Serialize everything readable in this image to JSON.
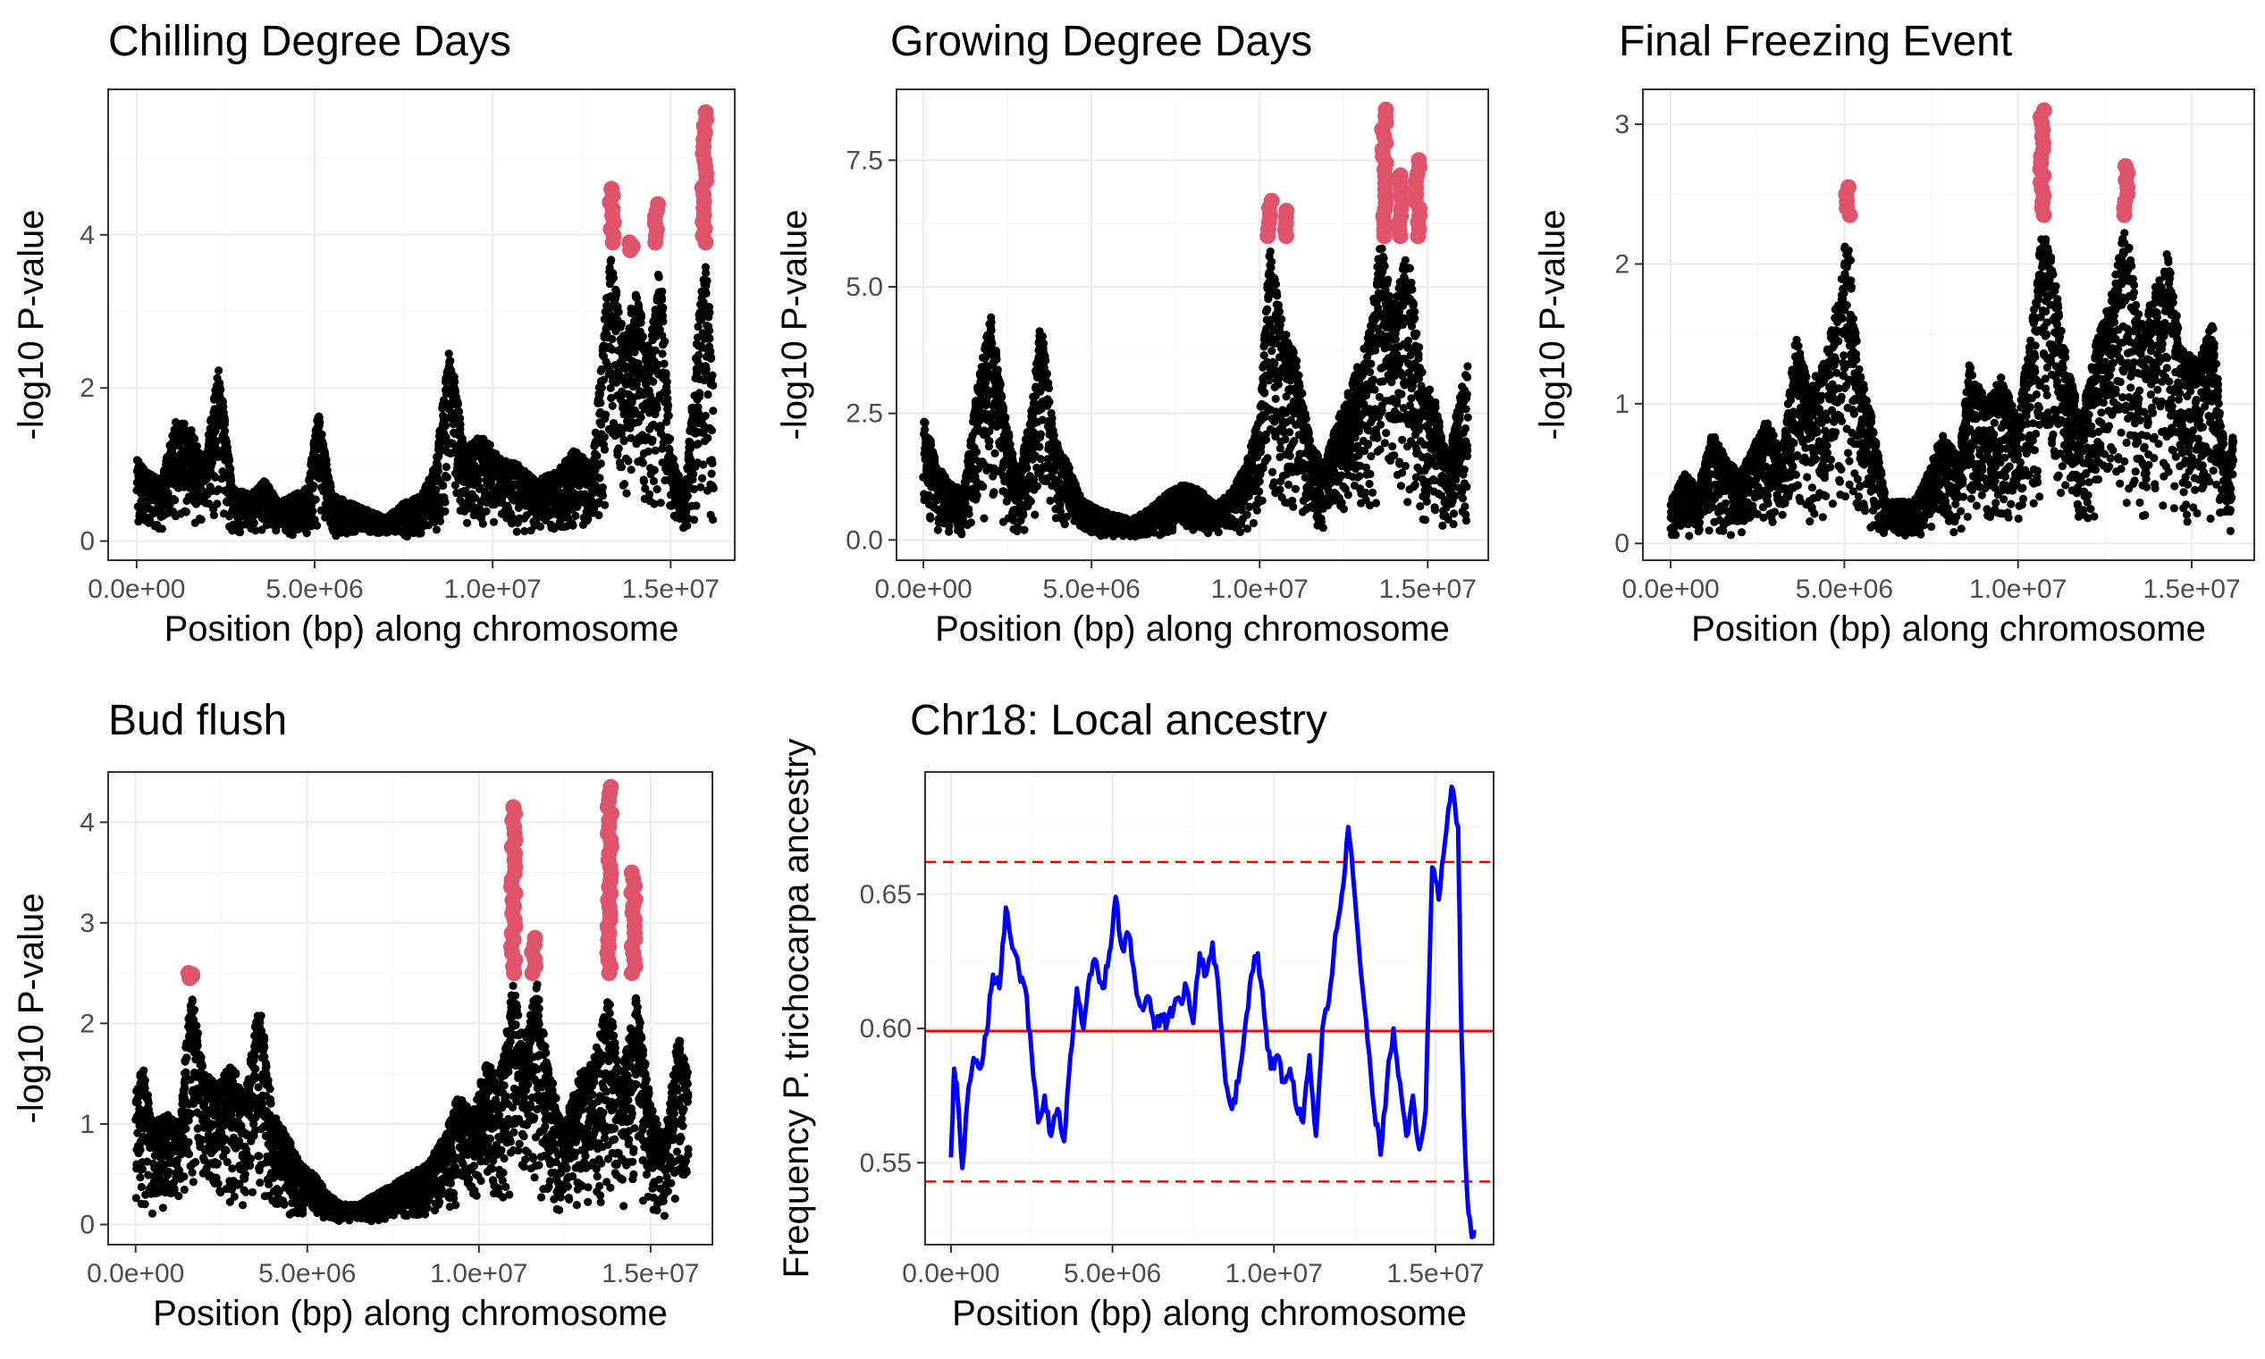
{
  "chart_data": [
    {
      "id": "cdd",
      "type": "scatter",
      "title": "Chilling Degree Days",
      "xlabel": "Position (bp) along chromosome",
      "ylabel": "-log10 P-value",
      "xlim": [
        -800000,
        16800000
      ],
      "ylim": [
        -0.25,
        5.9
      ],
      "xticks": [
        0,
        5000000,
        10000000,
        15000000
      ],
      "xtick_labels": [
        "0.0e+00",
        "5.0e+06",
        "1.0e+07",
        "1.5e+07"
      ],
      "yticks": [
        0,
        2,
        4
      ],
      "ytick_labels": [
        "0",
        "2",
        "4"
      ],
      "grid": true,
      "series_colors": {
        "points": "#000000",
        "significant": "#df536b"
      },
      "points_profile": [
        [
          0,
          1.1
        ],
        [
          300000,
          0.9
        ],
        [
          700000,
          0.8
        ],
        [
          1100000,
          1.6
        ],
        [
          1500000,
          1.5
        ],
        [
          1900000,
          1.0
        ],
        [
          2300000,
          2.3
        ],
        [
          2700000,
          0.7
        ],
        [
          3200000,
          0.6
        ],
        [
          3600000,
          0.8
        ],
        [
          4000000,
          0.5
        ],
        [
          4400000,
          0.6
        ],
        [
          4800000,
          0.7
        ],
        [
          5100000,
          1.7
        ],
        [
          5500000,
          0.6
        ],
        [
          6000000,
          0.5
        ],
        [
          6500000,
          0.4
        ],
        [
          7000000,
          0.3
        ],
        [
          7500000,
          0.5
        ],
        [
          8000000,
          0.6
        ],
        [
          8400000,
          1.0
        ],
        [
          8800000,
          2.6
        ],
        [
          9200000,
          1.2
        ],
        [
          9700000,
          1.4
        ],
        [
          10200000,
          1.1
        ],
        [
          10700000,
          1.0
        ],
        [
          11200000,
          0.8
        ],
        [
          11800000,
          0.9
        ],
        [
          12300000,
          1.2
        ],
        [
          12800000,
          1.0
        ],
        [
          13300000,
          3.8
        ],
        [
          13700000,
          2.6
        ],
        [
          14000000,
          3.3
        ],
        [
          14400000,
          2.5
        ],
        [
          14700000,
          3.8
        ],
        [
          15000000,
          1.2
        ],
        [
          15400000,
          0.6
        ],
        [
          15800000,
          3.0
        ],
        [
          16000000,
          3.9
        ],
        [
          16200000,
          2.2
        ]
      ],
      "significant_clusters": [
        {
          "x": 13350000,
          "y_min": 3.9,
          "y_max": 4.6
        },
        {
          "x": 13900000,
          "y_min": 3.8,
          "y_max": 3.9
        },
        {
          "x": 14600000,
          "y_min": 3.9,
          "y_max": 4.4
        },
        {
          "x": 15950000,
          "y_min": 3.9,
          "y_max": 5.6
        }
      ]
    },
    {
      "id": "gdd",
      "type": "scatter",
      "title": "Growing Degree Days",
      "xlabel": "Position (bp) along chromosome",
      "ylabel": "-log10 P-value",
      "xlim": [
        -800000,
        16800000
      ],
      "ylim": [
        -0.4,
        8.9
      ],
      "xticks": [
        0,
        5000000,
        10000000,
        15000000
      ],
      "xtick_labels": [
        "0.0e+00",
        "5.0e+06",
        "1.0e+07",
        "1.5e+07"
      ],
      "yticks": [
        0,
        2.5,
        5,
        7.5
      ],
      "ytick_labels": [
        "0.0",
        "2.5",
        "5.0",
        "7.5"
      ],
      "grid": true,
      "series_colors": {
        "points": "#000000",
        "significant": "#df536b"
      },
      "points_profile": [
        [
          0,
          2.5
        ],
        [
          400000,
          1.5
        ],
        [
          800000,
          1.1
        ],
        [
          1200000,
          1.0
        ],
        [
          1600000,
          3.0
        ],
        [
          2000000,
          4.5
        ],
        [
          2400000,
          2.6
        ],
        [
          2800000,
          1.2
        ],
        [
          3200000,
          2.5
        ],
        [
          3500000,
          4.4
        ],
        [
          3900000,
          2.0
        ],
        [
          4300000,
          1.5
        ],
        [
          4700000,
          0.8
        ],
        [
          5200000,
          0.6
        ],
        [
          5700000,
          0.5
        ],
        [
          6200000,
          0.4
        ],
        [
          6700000,
          0.6
        ],
        [
          7200000,
          0.9
        ],
        [
          7700000,
          1.1
        ],
        [
          8200000,
          1.0
        ],
        [
          8700000,
          0.7
        ],
        [
          9200000,
          1.0
        ],
        [
          9600000,
          1.5
        ],
        [
          10000000,
          2.5
        ],
        [
          10300000,
          5.8
        ],
        [
          10700000,
          4.2
        ],
        [
          11100000,
          3.6
        ],
        [
          11500000,
          2.0
        ],
        [
          11900000,
          1.5
        ],
        [
          12400000,
          2.5
        ],
        [
          12800000,
          3.2
        ],
        [
          13200000,
          4.0
        ],
        [
          13600000,
          5.9
        ],
        [
          14000000,
          4.6
        ],
        [
          14400000,
          5.8
        ],
        [
          14800000,
          3.5
        ],
        [
          15200000,
          2.8
        ],
        [
          15600000,
          1.6
        ],
        [
          16000000,
          3.0
        ],
        [
          16200000,
          3.5
        ]
      ],
      "significant_clusters": [
        {
          "x": 10300000,
          "y_min": 6.0,
          "y_max": 6.7
        },
        {
          "x": 10800000,
          "y_min": 6.0,
          "y_max": 6.5
        },
        {
          "x": 13700000,
          "y_min": 6.0,
          "y_max": 8.5
        },
        {
          "x": 14200000,
          "y_min": 6.0,
          "y_max": 7.2
        },
        {
          "x": 14700000,
          "y_min": 6.0,
          "y_max": 7.5
        }
      ]
    },
    {
      "id": "ffe",
      "type": "scatter",
      "title": "Final Freezing Event",
      "xlabel": "Position (bp) along chromosome",
      "ylabel": "-log10 P-value",
      "xlim": [
        -800000,
        16800000
      ],
      "ylim": [
        -0.12,
        3.25
      ],
      "xticks": [
        0,
        5000000,
        10000000,
        15000000
      ],
      "xtick_labels": [
        "0.0e+00",
        "5.0e+06",
        "1.0e+07",
        "1.5e+07"
      ],
      "yticks": [
        0,
        1,
        2,
        3
      ],
      "ytick_labels": [
        "0",
        "1",
        "2",
        "3"
      ],
      "grid": true,
      "series_colors": {
        "points": "#000000",
        "significant": "#df536b"
      },
      "points_profile": [
        [
          0,
          0.3
        ],
        [
          400000,
          0.5
        ],
        [
          800000,
          0.4
        ],
        [
          1200000,
          0.8
        ],
        [
          1600000,
          0.6
        ],
        [
          2000000,
          0.5
        ],
        [
          2400000,
          0.7
        ],
        [
          2800000,
          0.9
        ],
        [
          3200000,
          0.6
        ],
        [
          3600000,
          1.5
        ],
        [
          4000000,
          1.1
        ],
        [
          4500000,
          1.4
        ],
        [
          4900000,
          1.9
        ],
        [
          5100000,
          2.3
        ],
        [
          5400000,
          1.3
        ],
        [
          5800000,
          0.9
        ],
        [
          6200000,
          0.3
        ],
        [
          6600000,
          0.3
        ],
        [
          7000000,
          0.3
        ],
        [
          7400000,
          0.5
        ],
        [
          7800000,
          0.8
        ],
        [
          8300000,
          0.6
        ],
        [
          8600000,
          1.3
        ],
        [
          9100000,
          1.0
        ],
        [
          9500000,
          1.2
        ],
        [
          10000000,
          0.9
        ],
        [
          10500000,
          1.8
        ],
        [
          10700000,
          2.3
        ],
        [
          11000000,
          2.0
        ],
        [
          11400000,
          1.3
        ],
        [
          11800000,
          0.9
        ],
        [
          12200000,
          1.4
        ],
        [
          12700000,
          1.8
        ],
        [
          13100000,
          2.3
        ],
        [
          13500000,
          1.6
        ],
        [
          13900000,
          1.8
        ],
        [
          14300000,
          2.1
        ],
        [
          14700000,
          1.4
        ],
        [
          15200000,
          1.3
        ],
        [
          15600000,
          1.6
        ],
        [
          16000000,
          0.5
        ],
        [
          16200000,
          0.8
        ]
      ],
      "significant_clusters": [
        {
          "x": 5100000,
          "y_min": 2.35,
          "y_max": 2.55
        },
        {
          "x": 10700000,
          "y_min": 2.35,
          "y_max": 3.1
        },
        {
          "x": 13100000,
          "y_min": 2.35,
          "y_max": 2.7
        }
      ]
    },
    {
      "id": "bud",
      "type": "scatter",
      "title": "Bud flush",
      "xlabel": "Position (bp) along chromosome",
      "ylabel": "-log10 P-value",
      "xlim": [
        -800000,
        16800000
      ],
      "ylim": [
        -0.2,
        4.5
      ],
      "xticks": [
        0,
        5000000,
        10000000,
        15000000
      ],
      "xtick_labels": [
        "0.0e+00",
        "5.0e+06",
        "1.0e+07",
        "1.5e+07"
      ],
      "yticks": [
        0,
        1,
        2,
        3,
        4
      ],
      "ytick_labels": [
        "0",
        "1",
        "2",
        "3",
        "4"
      ],
      "grid": true,
      "series_colors": {
        "points": "#000000",
        "significant": "#df536b"
      },
      "points_profile": [
        [
          0,
          1.3
        ],
        [
          200000,
          1.6
        ],
        [
          500000,
          1.0
        ],
        [
          900000,
          1.1
        ],
        [
          1300000,
          1.0
        ],
        [
          1600000,
          2.4
        ],
        [
          2000000,
          1.5
        ],
        [
          2400000,
          1.4
        ],
        [
          2800000,
          1.6
        ],
        [
          3200000,
          1.3
        ],
        [
          3600000,
          2.3
        ],
        [
          4000000,
          1.1
        ],
        [
          4400000,
          0.9
        ],
        [
          4800000,
          0.6
        ],
        [
          5200000,
          0.5
        ],
        [
          5600000,
          0.3
        ],
        [
          6000000,
          0.2
        ],
        [
          6500000,
          0.2
        ],
        [
          7000000,
          0.3
        ],
        [
          7500000,
          0.4
        ],
        [
          8000000,
          0.5
        ],
        [
          8500000,
          0.6
        ],
        [
          9000000,
          0.9
        ],
        [
          9400000,
          1.3
        ],
        [
          9800000,
          1.1
        ],
        [
          10200000,
          1.6
        ],
        [
          10600000,
          1.5
        ],
        [
          11000000,
          2.4
        ],
        [
          11300000,
          1.8
        ],
        [
          11700000,
          2.4
        ],
        [
          12000000,
          1.6
        ],
        [
          12500000,
          1.0
        ],
        [
          12900000,
          1.5
        ],
        [
          13300000,
          1.6
        ],
        [
          13800000,
          2.3
        ],
        [
          14100000,
          1.4
        ],
        [
          14600000,
          2.3
        ],
        [
          15000000,
          1.2
        ],
        [
          15400000,
          0.8
        ],
        [
          15800000,
          1.9
        ],
        [
          16100000,
          1.5
        ]
      ],
      "significant_clusters": [
        {
          "x": 1600000,
          "y_min": 2.45,
          "y_max": 2.5
        },
        {
          "x": 11000000,
          "y_min": 2.5,
          "y_max": 4.15
        },
        {
          "x": 11600000,
          "y_min": 2.5,
          "y_max": 2.85
        },
        {
          "x": 13800000,
          "y_min": 2.5,
          "y_max": 4.35
        },
        {
          "x": 14500000,
          "y_min": 2.5,
          "y_max": 3.5
        }
      ]
    },
    {
      "id": "anc",
      "type": "line",
      "title": "Chr18: Local ancestry",
      "xlabel": "Position (bp) along chromosome",
      "ylabel": "Frequency P. trichocarpa ancestry",
      "xlim": [
        -800000,
        16800000
      ],
      "ylim": [
        0.5195,
        0.6955
      ],
      "xticks": [
        0,
        5000000,
        10000000,
        15000000
      ],
      "xtick_labels": [
        "0.0e+00",
        "5.0e+06",
        "1.0e+07",
        "1.5e+07"
      ],
      "yticks": [
        0.55,
        0.6,
        0.65
      ],
      "ytick_labels": [
        "0.55",
        "0.60",
        "0.65"
      ],
      "grid": true,
      "line_color": "#0000ff",
      "mean_line": 0.599,
      "mean_line_color": "#ff0000",
      "threshold_lines": [
        0.543,
        0.662
      ],
      "x": [
        0,
        100000,
        200000,
        350000,
        500000,
        700000,
        900000,
        1100000,
        1300000,
        1500000,
        1700000,
        1900000,
        2100000,
        2300000,
        2500000,
        2700000,
        2900000,
        3100000,
        3300000,
        3500000,
        3700000,
        3900000,
        4100000,
        4300000,
        4500000,
        4700000,
        4900000,
        5100000,
        5300000,
        5500000,
        5700000,
        5900000,
        6100000,
        6300000,
        6500000,
        6700000,
        6900000,
        7100000,
        7300000,
        7500000,
        7700000,
        7900000,
        8100000,
        8300000,
        8500000,
        8700000,
        8900000,
        9100000,
        9300000,
        9500000,
        9700000,
        9900000,
        10100000,
        10300000,
        10500000,
        10700000,
        10900000,
        11100000,
        11300000,
        11500000,
        11700000,
        11900000,
        12100000,
        12300000,
        12500000,
        12700000,
        12900000,
        13100000,
        13300000,
        13500000,
        13700000,
        13900000,
        14100000,
        14300000,
        14500000,
        14700000,
        14900000,
        15100000,
        15300000,
        15500000,
        15700000,
        15800000,
        15900000,
        16000000,
        16100000,
        16200000
      ],
      "y": [
        0.552,
        0.585,
        0.575,
        0.548,
        0.572,
        0.589,
        0.585,
        0.598,
        0.62,
        0.615,
        0.645,
        0.63,
        0.622,
        0.615,
        0.59,
        0.565,
        0.575,
        0.56,
        0.57,
        0.558,
        0.59,
        0.615,
        0.6,
        0.62,
        0.625,
        0.615,
        0.628,
        0.649,
        0.63,
        0.635,
        0.618,
        0.608,
        0.612,
        0.6,
        0.605,
        0.602,
        0.608,
        0.61,
        0.615,
        0.602,
        0.628,
        0.62,
        0.632,
        0.612,
        0.58,
        0.57,
        0.58,
        0.6,
        0.62,
        0.628,
        0.605,
        0.585,
        0.59,
        0.58,
        0.585,
        0.57,
        0.565,
        0.59,
        0.56,
        0.6,
        0.61,
        0.635,
        0.65,
        0.675,
        0.65,
        0.62,
        0.595,
        0.57,
        0.553,
        0.58,
        0.6,
        0.58,
        0.56,
        0.575,
        0.555,
        0.57,
        0.66,
        0.648,
        0.67,
        0.69,
        0.675,
        0.6,
        0.56,
        0.535,
        0.525,
        0.525
      ]
    }
  ]
}
